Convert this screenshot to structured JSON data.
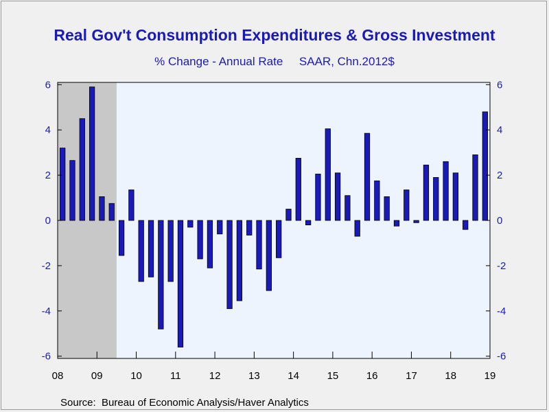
{
  "chart_data": {
    "type": "bar",
    "title": "Real Gov't Consumption Expenditures & Gross Investment",
    "subtitle": "% Change - Annual Rate     SAAR, Chn.2012$",
    "source": "Source:  Bureau of Economic Analysis/Haver Analytics",
    "frequency": "quarterly",
    "start": "2008 Q1",
    "x_tick_labels": [
      "08",
      "09",
      "10",
      "11",
      "12",
      "13",
      "14",
      "15",
      "16",
      "17",
      "18",
      "19"
    ],
    "y_ticks": [
      6,
      4,
      2,
      0,
      -2,
      -4,
      -6
    ],
    "ylim": [
      -6.1,
      6.1
    ],
    "recession_shading": {
      "start": "2008 Q1",
      "end": "2009 Q2",
      "color": "#c8c8c8"
    },
    "colors": {
      "bar": "#1a1ab8",
      "plot_background": "#eef4fd",
      "axis_text": "#1a1ab8"
    },
    "grid": false,
    "values": [
      3.2,
      2.65,
      4.5,
      5.9,
      1.05,
      0.75,
      -1.55,
      1.35,
      -2.7,
      -2.5,
      -4.8,
      -2.7,
      -5.6,
      -0.3,
      -1.7,
      -2.1,
      -0.6,
      -3.9,
      -3.55,
      -0.65,
      -2.15,
      -3.1,
      -1.65,
      0.5,
      2.75,
      -0.2,
      2.05,
      4.05,
      2.1,
      1.1,
      -0.7,
      3.85,
      1.75,
      1.05,
      -0.25,
      1.35,
      -0.1,
      2.45,
      1.9,
      2.6,
      2.1,
      -0.4,
      2.9,
      4.8
    ]
  }
}
